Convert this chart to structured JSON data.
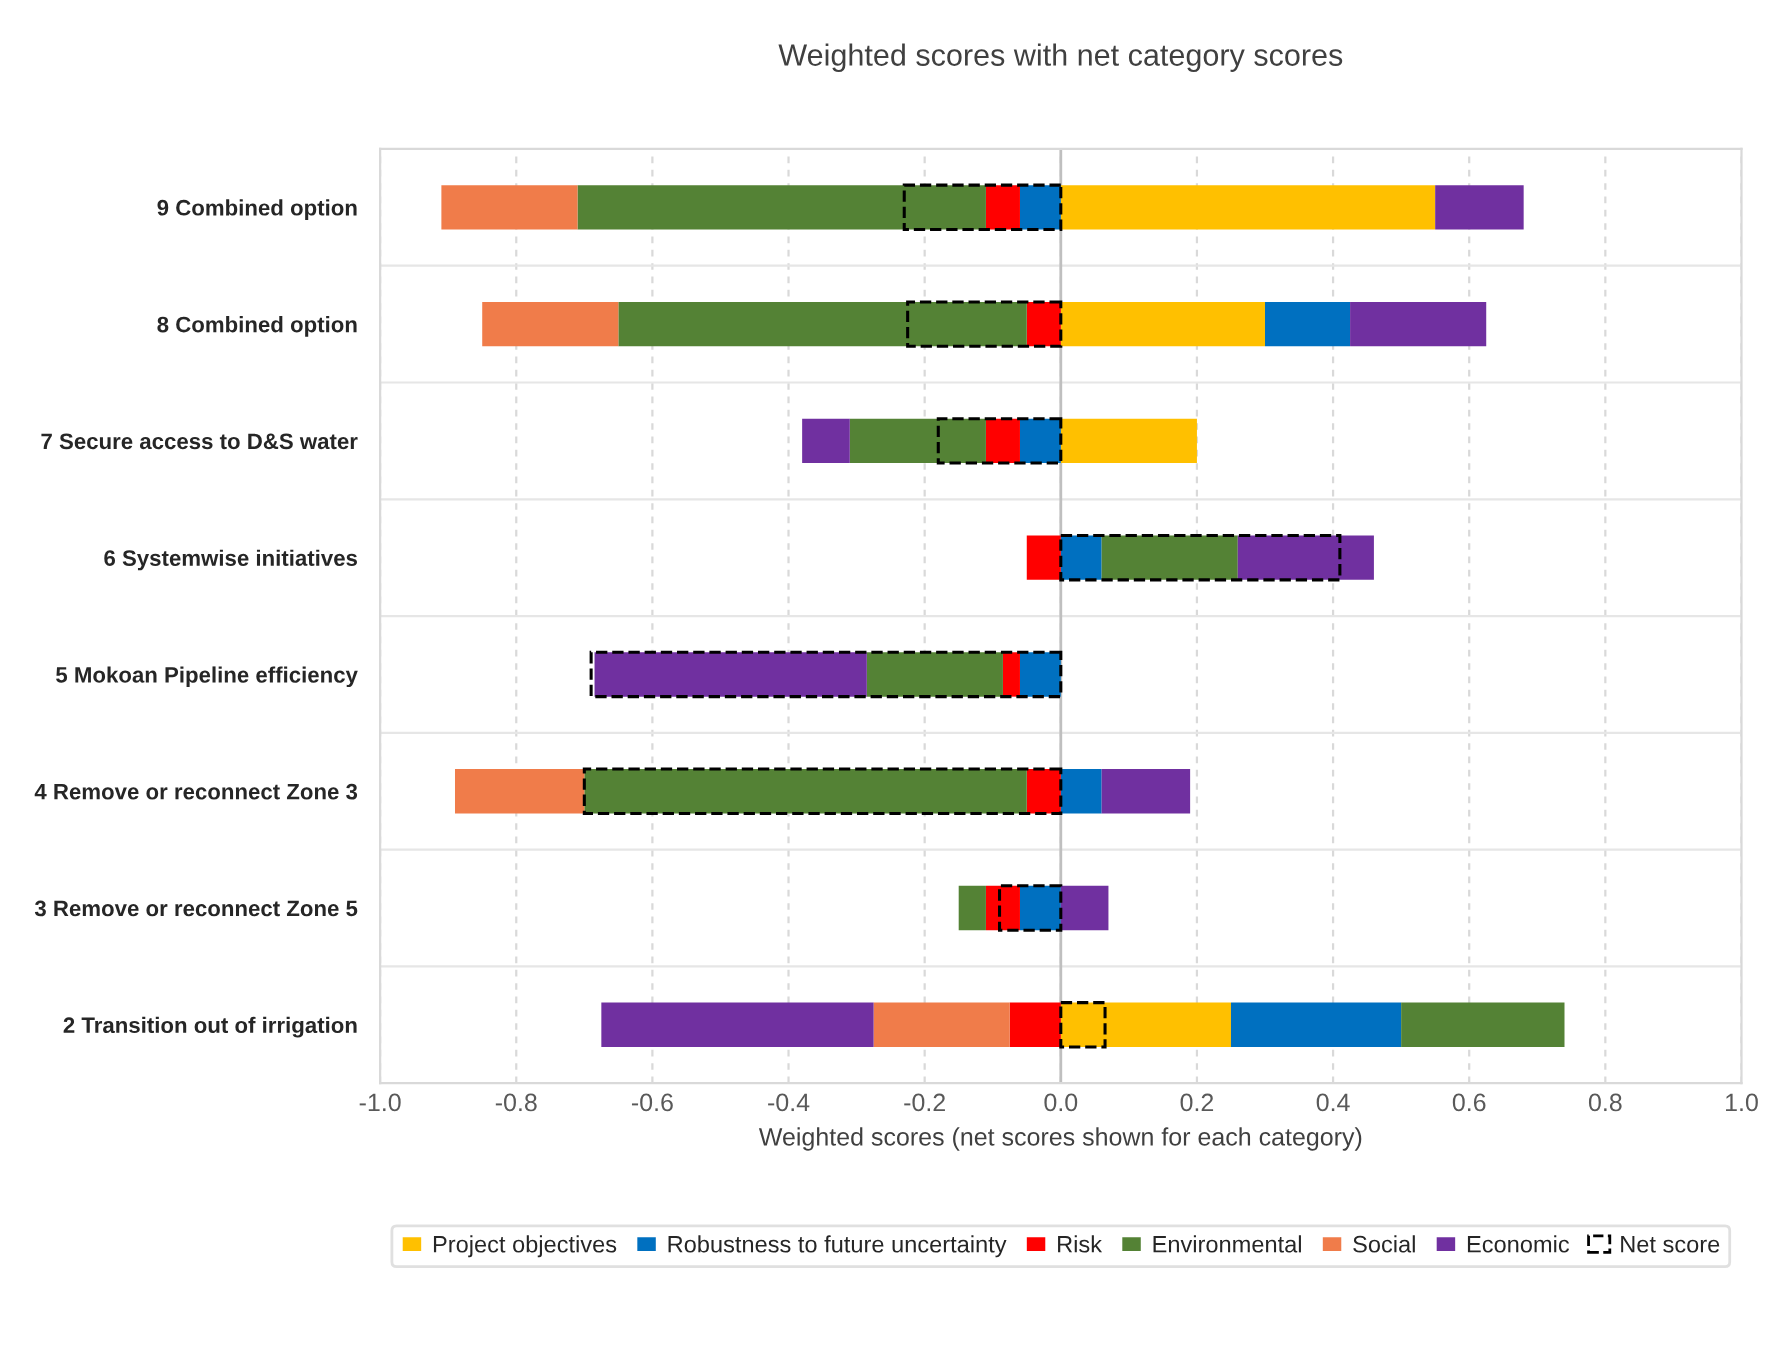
{
  "chart_data": [
    {
      "type": "bar",
      "orientation": "horizontal",
      "stacked": true,
      "title": "Weighted scores with net category scores",
      "xlabel": "Weighted scores (net scores shown for each category)",
      "categories": [
        "9 Combined option",
        "8 Combined option",
        "7 Secure access to D&S water",
        "6 Systemwise initiatives",
        "5 Mokoan Pipeline efficiency",
        "4 Remove or reconnect Zone 3",
        "3 Remove or reconnect Zone 5",
        "2 Transition out of irrigation"
      ],
      "series": [
        {
          "name": "Project objectives",
          "color": "#ffc000",
          "values": [
            0.55,
            0.3,
            0.2,
            null,
            null,
            null,
            null,
            0.25
          ]
        },
        {
          "name": "Robustness to future uncertainty",
          "color": "#0070c0",
          "values": [
            -0.06,
            0.125,
            -0.06,
            0.06,
            -0.06,
            0.06,
            -0.06,
            0.25
          ]
        },
        {
          "name": "Risk",
          "color": "#ff0000",
          "values": [
            -0.05,
            -0.05,
            -0.05,
            -0.05,
            -0.025,
            -0.05,
            -0.05,
            -0.075
          ]
        },
        {
          "name": "Environmental",
          "color": "#548235",
          "values": [
            -0.6,
            -0.6,
            -0.2,
            0.2,
            -0.2,
            -0.65,
            -0.04,
            0.24
          ]
        },
        {
          "name": "Social",
          "color": "#f07c4a",
          "values": [
            -0.2,
            -0.2,
            null,
            null,
            null,
            -0.19,
            null,
            -0.2
          ]
        },
        {
          "name": "Economic",
          "color": "#7030a0",
          "values": [
            0.13,
            0.2,
            -0.07,
            0.2,
            -0.4,
            0.13,
            0.07,
            -0.4
          ]
        }
      ],
      "xlim": [
        -1.0,
        1.0
      ],
      "xticks": [
        {
          "value": -1.0,
          "label": "-1.0"
        },
        {
          "value": -0.8,
          "label": "-0.8"
        },
        {
          "value": -0.6,
          "label": "-0.6"
        },
        {
          "value": -0.4,
          "label": "-0.4"
        },
        {
          "value": -0.2,
          "label": "-0.2"
        },
        {
          "value": 0.0,
          "label": "0.0"
        },
        {
          "value": 0.2,
          "label": "0.2"
        },
        {
          "value": 0.4,
          "label": "0.4"
        },
        {
          "value": 0.6,
          "label": "0.6"
        },
        {
          "value": 0.8,
          "label": "0.8"
        },
        {
          "value": 1.0,
          "label": "1.0"
        }
      ],
      "ref_lines": [
        {
          "axis": "x",
          "value": 0,
          "color": "#bfbfbf"
        }
      ],
      "grid": "x",
      "legend": "bottom"
    },
    {
      "type": "bar",
      "orientation": "horizontal",
      "categories": [
        null,
        null,
        null,
        null,
        null,
        null,
        null,
        null
      ],
      "series": [
        {
          "name": "Net score",
          "color": "#000000",
          "values": [
            -0.23,
            -0.225,
            -0.18,
            0.41,
            -0.69,
            -0.7,
            -0.09,
            0.065
          ]
        }
      ],
      "line_style": "dashed",
      "xlim": [
        -1.0,
        1.0
      ],
      "legend": "bottom"
    }
  ]
}
